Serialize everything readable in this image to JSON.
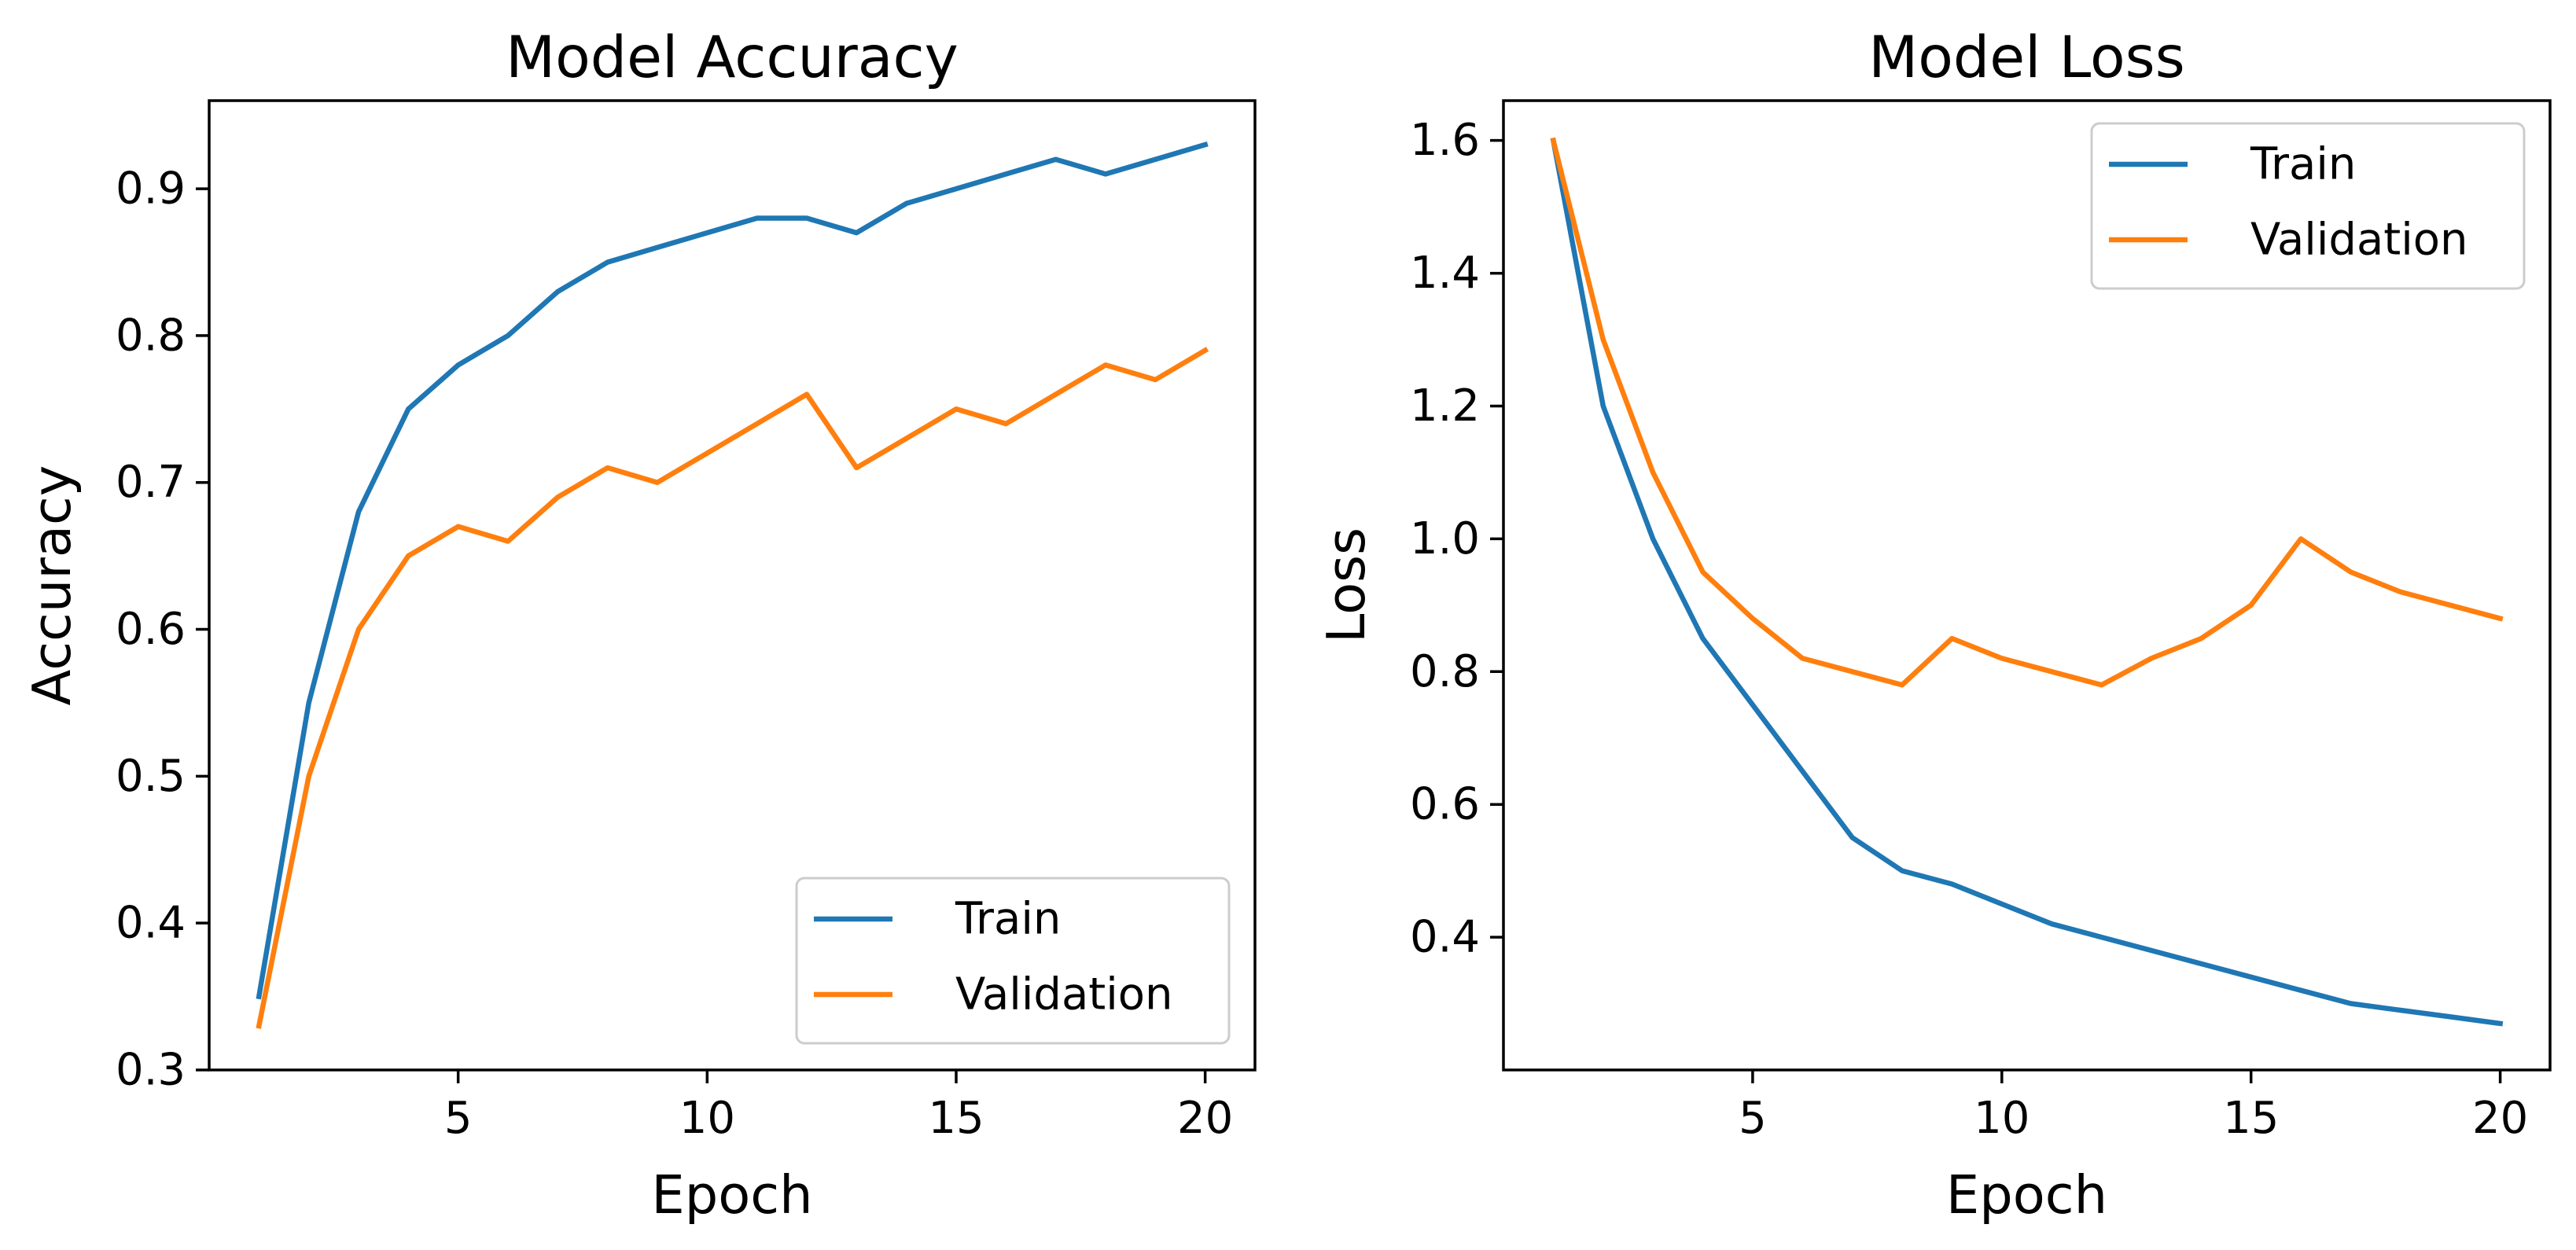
{
  "chart_data": [
    {
      "type": "line",
      "title": "Model Accuracy",
      "xlabel": "Epoch",
      "ylabel": "Accuracy",
      "xlim": [
        0,
        21
      ],
      "ylim": [
        0.3,
        0.96
      ],
      "xticks": [
        5,
        10,
        15,
        20
      ],
      "yticks": [
        0.3,
        0.4,
        0.5,
        0.6,
        0.7,
        0.8,
        0.9
      ],
      "xtick_labels": [
        "5",
        "10",
        "15",
        "20"
      ],
      "ytick_labels": [
        "0.3",
        "0.4",
        "0.5",
        "0.6",
        "0.7",
        "0.8",
        "0.9"
      ],
      "grid": false,
      "legend_position": "lower-right",
      "x": [
        1,
        2,
        3,
        4,
        5,
        6,
        7,
        8,
        9,
        10,
        11,
        12,
        13,
        14,
        15,
        16,
        17,
        18,
        19,
        20
      ],
      "series": [
        {
          "name": "Train",
          "color": "#1f77b4",
          "values": [
            0.35,
            0.55,
            0.68,
            0.75,
            0.78,
            0.8,
            0.83,
            0.85,
            0.86,
            0.87,
            0.88,
            0.88,
            0.87,
            0.89,
            0.9,
            0.91,
            0.92,
            0.91,
            0.92,
            0.93
          ]
        },
        {
          "name": "Validation",
          "color": "#ff7f0e",
          "values": [
            0.33,
            0.5,
            0.6,
            0.65,
            0.67,
            0.66,
            0.69,
            0.71,
            0.7,
            0.72,
            0.74,
            0.76,
            0.71,
            0.73,
            0.75,
            0.74,
            0.76,
            0.78,
            0.77,
            0.79
          ]
        }
      ]
    },
    {
      "type": "line",
      "title": "Model Loss",
      "xlabel": "Epoch",
      "ylabel": "Loss",
      "xlim": [
        0,
        21
      ],
      "ylim": [
        0.2,
        1.66
      ],
      "xticks": [
        5,
        10,
        15,
        20
      ],
      "yticks": [
        0.4,
        0.6,
        0.8,
        1.0,
        1.2,
        1.4,
        1.6
      ],
      "xtick_labels": [
        "5",
        "10",
        "15",
        "20"
      ],
      "ytick_labels": [
        "0.4",
        "0.6",
        "0.8",
        "1.0",
        "1.2",
        "1.4",
        "1.6"
      ],
      "grid": false,
      "legend_position": "upper-right",
      "x": [
        1,
        2,
        3,
        4,
        5,
        6,
        7,
        8,
        9,
        10,
        11,
        12,
        13,
        14,
        15,
        16,
        17,
        18,
        19,
        20
      ],
      "series": [
        {
          "name": "Train",
          "color": "#1f77b4",
          "values": [
            1.6,
            1.2,
            1.0,
            0.85,
            0.75,
            0.65,
            0.55,
            0.5,
            0.48,
            0.45,
            0.42,
            0.4,
            0.38,
            0.36,
            0.34,
            0.32,
            0.3,
            0.29,
            0.28,
            0.27
          ]
        },
        {
          "name": "Validation",
          "color": "#ff7f0e",
          "values": [
            1.6,
            1.3,
            1.1,
            0.95,
            0.88,
            0.82,
            0.8,
            0.78,
            0.85,
            0.82,
            0.8,
            0.78,
            0.82,
            0.85,
            0.9,
            1.0,
            0.95,
            0.92,
            0.9,
            0.88
          ]
        }
      ]
    }
  ]
}
